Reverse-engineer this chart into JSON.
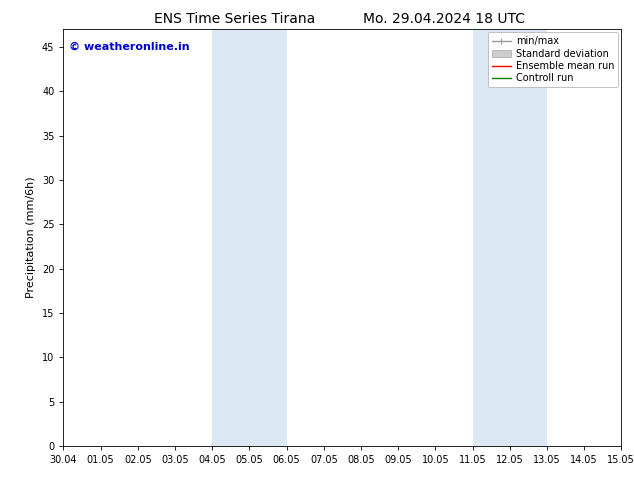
{
  "title_left": "ENS Time Series Tirana",
  "title_right": "Mo. 29.04.2024 18 UTC",
  "ylabel": "Precipitation (mm/6h)",
  "watermark": "© weatheronline.in",
  "watermark_color": "#0000cc",
  "ylim": [
    0,
    47
  ],
  "yticks": [
    0,
    5,
    10,
    15,
    20,
    25,
    30,
    35,
    40,
    45
  ],
  "xtick_labels": [
    "30.04",
    "01.05",
    "02.05",
    "03.05",
    "04.05",
    "05.05",
    "06.05",
    "07.05",
    "08.05",
    "09.05",
    "10.05",
    "11.05",
    "12.05",
    "13.05",
    "14.05",
    "15.05"
  ],
  "bg_color": "#ffffff",
  "plot_bg_color": "#ffffff",
  "shaded_regions": [
    {
      "xstart": 4.0,
      "xend": 6.0,
      "color": "#dce9f5"
    },
    {
      "xstart": 11.0,
      "xend": 13.0,
      "color": "#dce9f5"
    }
  ],
  "legend_items": [
    {
      "label": "min/max",
      "color": "#999999",
      "lw": 1.0,
      "style": "minmax"
    },
    {
      "label": "Standard deviation",
      "color": "#cccccc",
      "lw": 6,
      "style": "bar"
    },
    {
      "label": "Ensemble mean run",
      "color": "#ff0000",
      "lw": 1.0,
      "style": "line"
    },
    {
      "label": "Controll run",
      "color": "#008000",
      "lw": 1.0,
      "style": "line"
    }
  ],
  "title_fontsize": 10,
  "tick_fontsize": 7,
  "label_fontsize": 8,
  "legend_fontsize": 7,
  "watermark_fontsize": 8
}
